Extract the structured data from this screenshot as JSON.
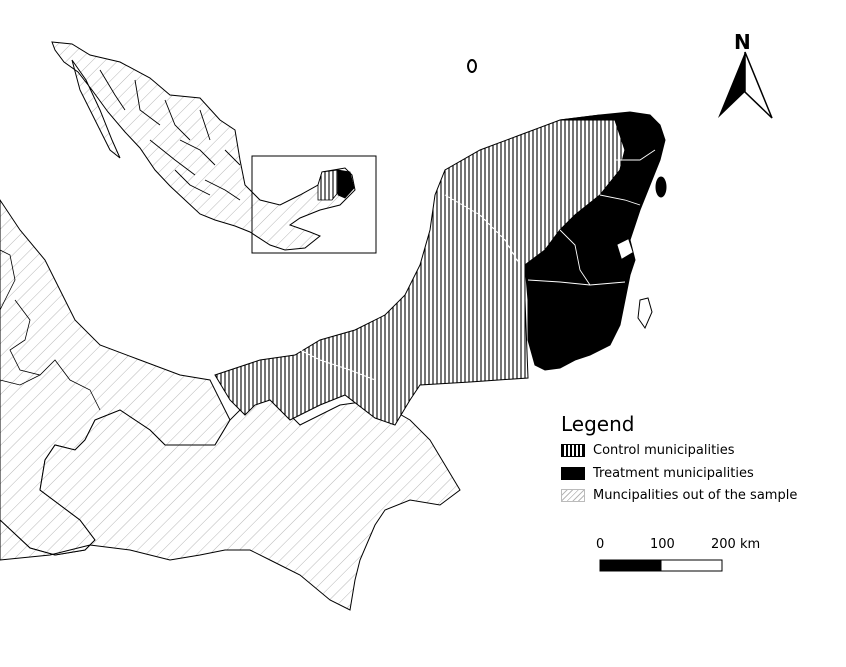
{
  "north_arrow": {
    "letter": "N"
  },
  "legend": {
    "title": "Legend",
    "items": [
      {
        "label": "Control municipalities",
        "pattern": "vertical-stripes"
      },
      {
        "label": "Treatment municipalities",
        "pattern": "solid-black"
      },
      {
        "label": "Muncipalities out of the sample",
        "pattern": "diagonal-hatch"
      }
    ]
  },
  "scale_bar": {
    "labels": [
      "0",
      "100",
      "200 km"
    ]
  },
  "colors": {
    "treatment": "#000000",
    "hatch": "#bfbfbf",
    "outline": "#000000",
    "background": "#ffffff"
  }
}
